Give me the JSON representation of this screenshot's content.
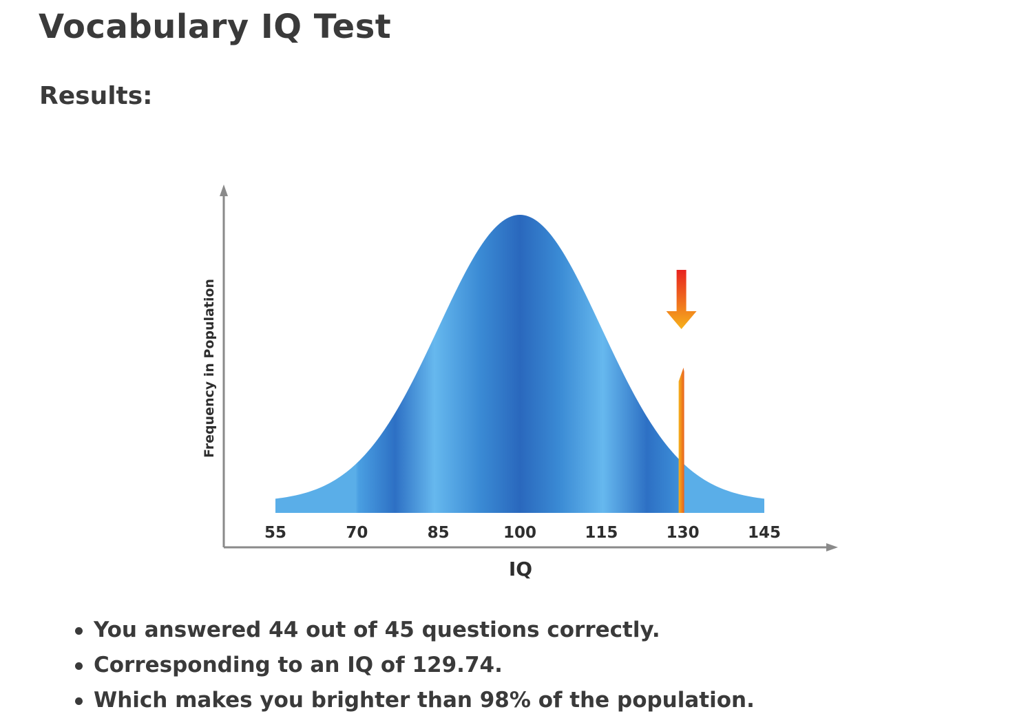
{
  "page": {
    "title": "Vocabulary IQ Test",
    "results_heading": "Results:"
  },
  "chart_data": {
    "type": "area",
    "title": "",
    "xlabel": "IQ",
    "ylabel": "Frequency in Population",
    "distribution": {
      "mean": 100,
      "sd": 15
    },
    "x_ticks": [
      55,
      70,
      85,
      100,
      115,
      130,
      145
    ],
    "xlim": [
      55,
      145
    ],
    "marker": {
      "value": 129.74,
      "color": "#f28c1c",
      "arrow_colors": [
        "#e8231f",
        "#f6b21c"
      ]
    },
    "colors": {
      "curve_light": "#6bb8ee",
      "curve_dark": "#2b6cc0",
      "axis": "#888888"
    },
    "grid": false,
    "legend": "none"
  },
  "results": {
    "items": [
      "You answered 44 out of 45 questions correctly.",
      "Corresponding to an IQ of 129.74.",
      "Which makes you brighter than 98% of the population."
    ]
  }
}
